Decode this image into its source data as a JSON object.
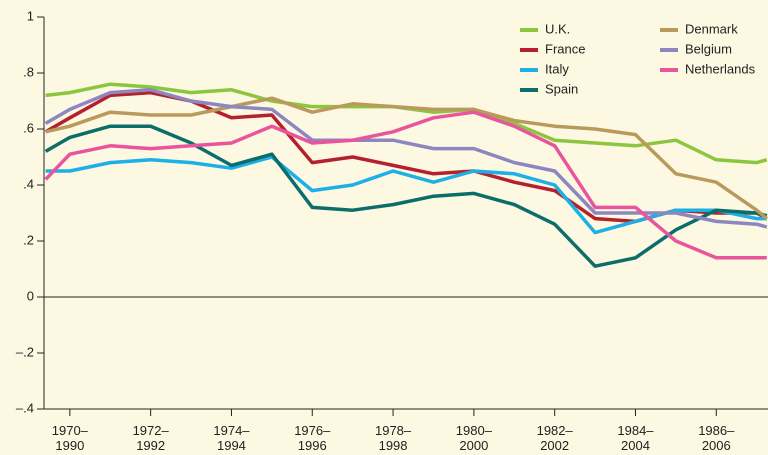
{
  "chart_data": {
    "type": "line",
    "x": [
      1969.4,
      1970,
      1971,
      1972,
      1973,
      1974,
      1975,
      1976,
      1977,
      1978,
      1979,
      1980,
      1981,
      1982,
      1983,
      1984,
      1985,
      1986,
      1987,
      1987.25
    ],
    "xlim": [
      1969.36,
      1987.28
    ],
    "xticks": [
      {
        "value": 1970,
        "label": "1970–1990"
      },
      {
        "value": 1972,
        "label": "1972–1992"
      },
      {
        "value": 1974,
        "label": "1974–1994"
      },
      {
        "value": 1976,
        "label": "1976–1996"
      },
      {
        "value": 1978,
        "label": "1978–1998"
      },
      {
        "value": 1980,
        "label": "1980–2000"
      },
      {
        "value": 1982,
        "label": "1982–2002"
      },
      {
        "value": 1984,
        "label": "1984–2004"
      },
      {
        "value": 1986,
        "label": "1986–2006"
      }
    ],
    "ylim": [
      -0.4,
      1
    ],
    "yticks": [
      {
        "value": -0.4,
        "label": "–.4"
      },
      {
        "value": -0.2,
        "label": "–.2"
      },
      0,
      {
        "value": 0.2,
        "label": ".2"
      },
      {
        "value": 0.4,
        "label": ".4"
      },
      {
        "value": 0.6,
        "label": ".6"
      },
      {
        "value": 0.8,
        "label": ".8"
      },
      1
    ],
    "legend": "top-right",
    "series": [
      {
        "name": "U.K.",
        "color": "#8cc63f",
        "values": [
          0.72,
          0.73,
          0.76,
          0.75,
          0.73,
          0.74,
          0.7,
          0.68,
          0.68,
          0.68,
          0.66,
          0.67,
          0.62,
          0.56,
          0.55,
          0.54,
          0.56,
          0.49,
          0.48,
          0.49
        ]
      },
      {
        "name": "France",
        "color": "#b5202e",
        "values": [
          0.59,
          0.64,
          0.72,
          0.73,
          0.7,
          0.64,
          0.65,
          0.48,
          0.5,
          0.47,
          0.44,
          0.45,
          0.41,
          0.38,
          0.28,
          0.27,
          0.31,
          0.3,
          0.3,
          0.28
        ]
      },
      {
        "name": "Italy",
        "color": "#1cb0e6",
        "values": [
          0.45,
          0.45,
          0.48,
          0.49,
          0.48,
          0.46,
          0.5,
          0.38,
          0.4,
          0.45,
          0.41,
          0.45,
          0.44,
          0.4,
          0.23,
          0.27,
          0.31,
          0.31,
          0.28,
          0.28
        ]
      },
      {
        "name": "Spain",
        "color": "#0b6e6a",
        "values": [
          0.52,
          0.57,
          0.61,
          0.61,
          0.55,
          0.47,
          0.51,
          0.32,
          0.31,
          0.33,
          0.36,
          0.37,
          0.33,
          0.26,
          0.11,
          0.14,
          0.24,
          0.31,
          0.3,
          0.29
        ]
      },
      {
        "name": "Denmark",
        "color": "#b99a5c",
        "values": [
          0.59,
          0.61,
          0.66,
          0.65,
          0.65,
          0.68,
          0.71,
          0.66,
          0.69,
          0.68,
          0.67,
          0.67,
          0.63,
          0.61,
          0.6,
          0.58,
          0.44,
          0.41,
          0.31,
          0.28
        ]
      },
      {
        "name": "Belgium",
        "color": "#8c87c0",
        "values": [
          0.62,
          0.67,
          0.73,
          0.74,
          0.7,
          0.68,
          0.67,
          0.56,
          0.56,
          0.56,
          0.53,
          0.53,
          0.48,
          0.45,
          0.3,
          0.3,
          0.3,
          0.27,
          0.26,
          0.25
        ]
      },
      {
        "name": "Netherlands",
        "color": "#e8559c",
        "values": [
          0.42,
          0.51,
          0.54,
          0.53,
          0.54,
          0.55,
          0.61,
          0.55,
          0.56,
          0.59,
          0.64,
          0.66,
          0.61,
          0.54,
          0.32,
          0.32,
          0.2,
          0.14,
          0.14,
          0.14
        ]
      }
    ]
  }
}
